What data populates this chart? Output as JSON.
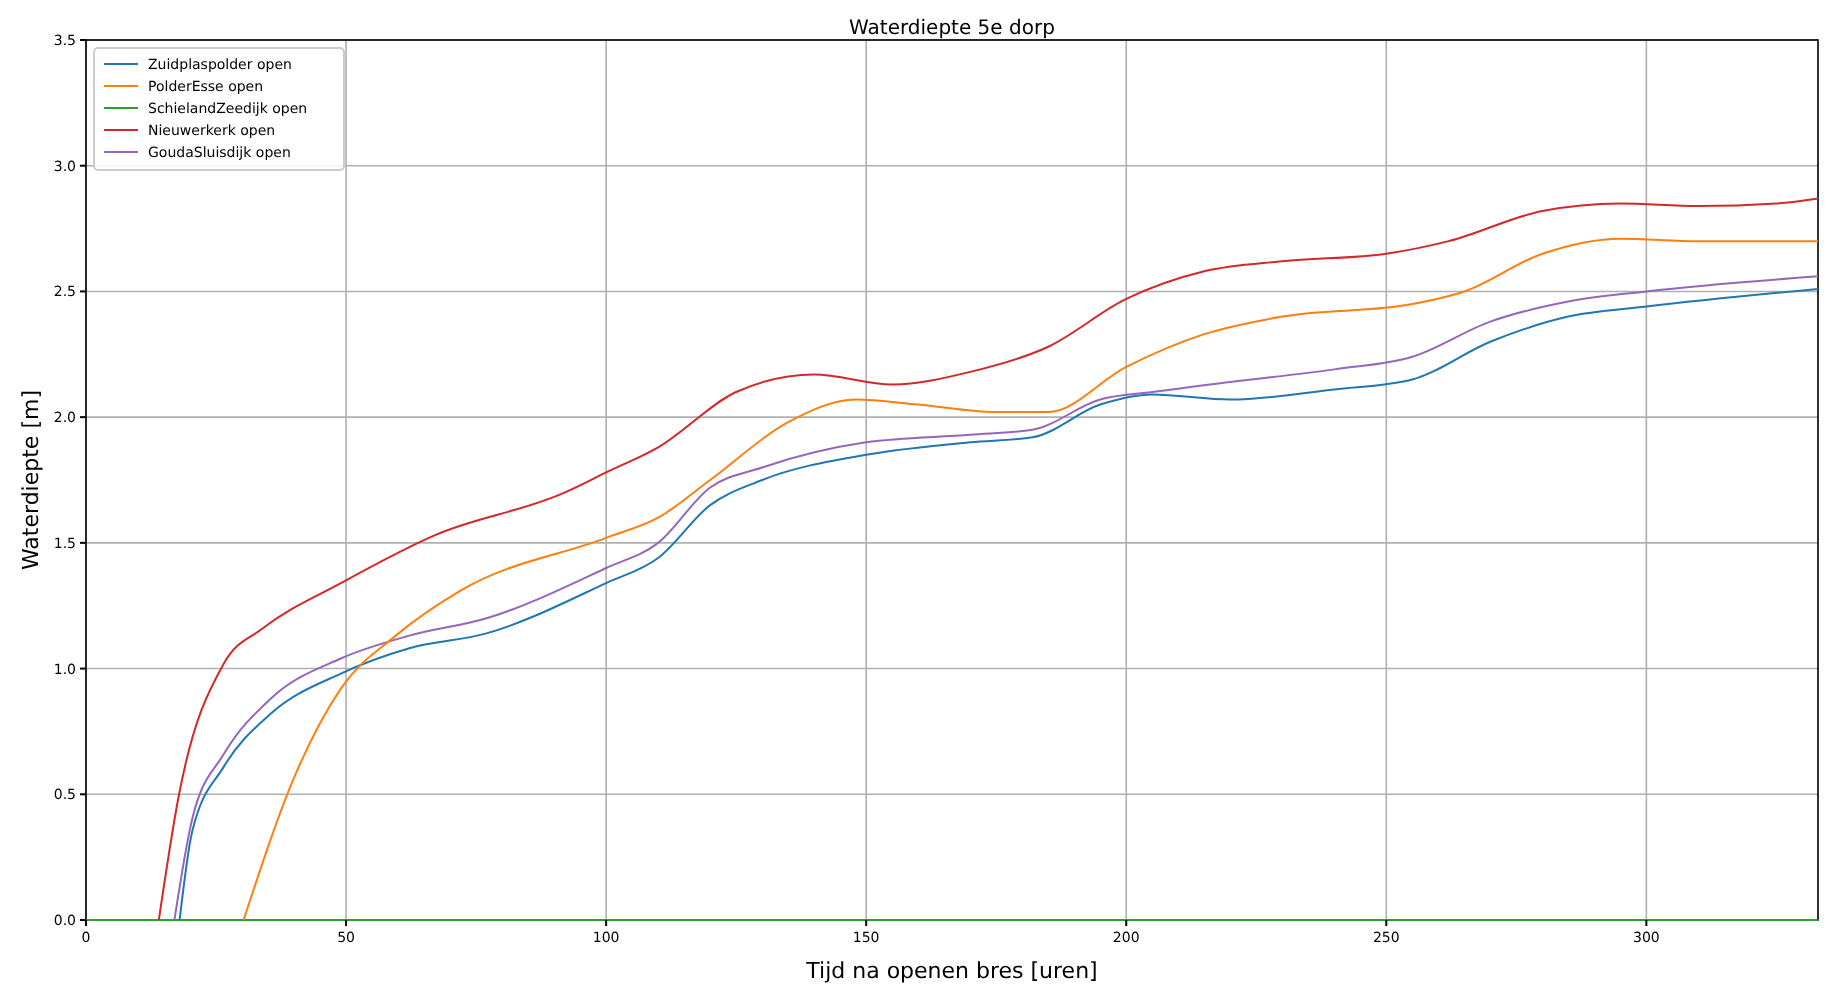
{
  "chart_data": {
    "type": "line",
    "title": "Waterdiepte 5e dorp",
    "xlabel": "Tijd na openen bres [uren]",
    "ylabel": "Waterdiepte [m]",
    "xlim": [
      0,
      333
    ],
    "xticks": [
      0,
      50,
      100,
      150,
      200,
      250,
      300
    ],
    "ylim": [
      0,
      3.5
    ],
    "yticks": [
      {
        "value": 0,
        "label": "0.0"
      },
      {
        "value": 0.5,
        "label": "0.5"
      },
      {
        "value": 1,
        "label": "1.0"
      },
      {
        "value": 1.5,
        "label": "1.5"
      },
      {
        "value": 2,
        "label": "2.0"
      },
      {
        "value": 2.5,
        "label": "2.5"
      },
      {
        "value": 3,
        "label": "3.0"
      },
      {
        "value": 3.5,
        "label": "3.5"
      }
    ],
    "grid": true,
    "legend": "top left",
    "line_style": "solid",
    "series": [
      {
        "name": "Zuidplaspolder open",
        "color": "#1f77b4",
        "x": [
          18,
          20.4,
          26.5,
          35.5,
          49,
          62,
          77,
          100,
          110,
          120,
          130,
          150,
          170,
          182,
          195,
          205,
          220,
          240,
          255,
          270,
          285,
          300,
          333
        ],
        "values": [
          0,
          0.35,
          0.61,
          0.82,
          0.98,
          1.08,
          1.14,
          1.34,
          1.44,
          1.65,
          1.75,
          1.85,
          1.9,
          1.92,
          2.05,
          2.09,
          2.07,
          2.11,
          2.15,
          2.3,
          2.4,
          2.44,
          2.51
        ]
      },
      {
        "name": "PolderEsse open",
        "color": "#ff7f0e",
        "x": [
          30.3,
          40.5,
          49,
          59.5,
          72,
          100,
          110,
          120,
          135,
          148,
          160,
          175,
          185,
          200,
          215,
          230,
          255,
          265,
          280,
          295,
          310,
          333
        ],
        "values": [
          0,
          0.59,
          0.92,
          1.13,
          1.31,
          1.52,
          1.6,
          1.75,
          1.98,
          2.07,
          2.05,
          2.02,
          2.02,
          2.2,
          2.33,
          2.4,
          2.45,
          2.5,
          2.65,
          2.71,
          2.7,
          2.7
        ]
      },
      {
        "name": "SchielandZeedijk open",
        "color": "#2ca02c",
        "x": [
          0,
          333
        ],
        "values": [
          0,
          0
        ]
      },
      {
        "name": "Nieuwerkerk open",
        "color": "#d62728",
        "x": [
          14,
          17.8,
          26.5,
          34,
          49,
          67,
          92,
          100,
          110,
          125,
          140,
          155,
          170,
          185,
          200,
          215,
          230,
          250,
          262,
          280,
          295,
          310,
          325,
          333
        ],
        "values": [
          0,
          0.49,
          1.02,
          1.16,
          1.34,
          1.53,
          1.7,
          1.78,
          1.88,
          2.1,
          2.17,
          2.13,
          2.18,
          2.28,
          2.47,
          2.58,
          2.62,
          2.65,
          2.7,
          2.82,
          2.85,
          2.84,
          2.85,
          2.87
        ]
      },
      {
        "name": "GoudaSluisdijk open",
        "color": "#9467bd",
        "x": [
          17,
          20.4,
          26.5,
          35.5,
          49,
          62,
          77,
          100,
          110,
          120,
          130,
          150,
          170,
          182,
          195,
          205,
          220,
          240,
          255,
          270,
          285,
          300,
          333
        ],
        "values": [
          0,
          0.4,
          0.66,
          0.88,
          1.04,
          1.13,
          1.2,
          1.4,
          1.5,
          1.72,
          1.8,
          1.9,
          1.93,
          1.95,
          2.07,
          2.1,
          2.14,
          2.19,
          2.24,
          2.38,
          2.46,
          2.5,
          2.56
        ]
      }
    ]
  }
}
